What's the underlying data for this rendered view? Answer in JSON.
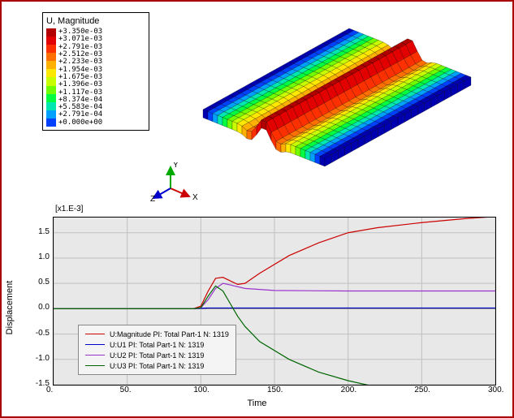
{
  "legend": {
    "title": "U, Magnitude",
    "colors": [
      "#b20000",
      "#e30000",
      "#ff3000",
      "#ff7000",
      "#ffb000",
      "#ffe800",
      "#c8ff00",
      "#70ff00",
      "#00ff40",
      "#00e8b0",
      "#00a0ff",
      "#0040ff",
      "#0000b0"
    ],
    "ticks": [
      "+3.350e-03",
      "+3.071e-03",
      "+2.791e-03",
      "+2.512e-03",
      "+2.233e-03",
      "+1.954e-03",
      "+1.675e-03",
      "+1.396e-03",
      "+1.117e-03",
      "+8.374e-04",
      "+5.583e-04",
      "+2.791e-04",
      "+0.000e+00"
    ]
  },
  "triad": {
    "x_label": "X",
    "y_label": "Y",
    "z_label": "Z",
    "x_color": "#cc0000",
    "y_color": "#00aa00",
    "z_color": "#0000cc"
  },
  "mesh": {
    "contour_colors_top": [
      "#0000b0",
      "#0040ff",
      "#00a0ff",
      "#00e8b0",
      "#00ff40",
      "#70ff00",
      "#c8ff00",
      "#ffe800",
      "#ffb000",
      "#ff7000",
      "#ff3000",
      "#e30000",
      "#b20000",
      "#e30000",
      "#ff3000",
      "#ff7000",
      "#ffb000",
      "#ffe800",
      "#c8ff00",
      "#70ff00",
      "#00ff40",
      "#00e8b0",
      "#00a0ff",
      "#0040ff",
      "#0000b0"
    ]
  },
  "chart": {
    "exponent_label": "[x1.E-3]",
    "ylabel": "Displacement",
    "xlabel": "Time",
    "xlim": [
      0,
      300
    ],
    "ylim": [
      -1.5,
      1.8
    ],
    "xticks": [
      0,
      50,
      100,
      150,
      200,
      250,
      300
    ],
    "xtick_labels": [
      "0.",
      "50.",
      "100.",
      "150.",
      "200.",
      "250.",
      "300."
    ],
    "yticks": [
      -1.5,
      -1.0,
      -0.5,
      0.0,
      0.5,
      1.0,
      1.5
    ],
    "ytick_labels": [
      "-1.5",
      "-1.0",
      "-0.5",
      "0.0",
      "0.5",
      "1.0",
      "1.5"
    ],
    "plot_bg": "#e8e8e8",
    "grid_color": "#c0c0c0",
    "series": [
      {
        "label": "U:Magnitude PI: Total Part-1 N: 1319",
        "color": "#cc0000",
        "points": [
          [
            0,
            0
          ],
          [
            95,
            0
          ],
          [
            100,
            0.05
          ],
          [
            105,
            0.35
          ],
          [
            110,
            0.6
          ],
          [
            115,
            0.62
          ],
          [
            120,
            0.55
          ],
          [
            125,
            0.48
          ],
          [
            130,
            0.5
          ],
          [
            140,
            0.7
          ],
          [
            160,
            1.05
          ],
          [
            180,
            1.3
          ],
          [
            200,
            1.5
          ],
          [
            220,
            1.6
          ],
          [
            250,
            1.7
          ],
          [
            280,
            1.78
          ],
          [
            300,
            1.82
          ]
        ]
      },
      {
        "label": "U:U1 PI: Total Part-1 N: 1319",
        "color": "#0000cc",
        "points": [
          [
            0,
            0
          ],
          [
            95,
            0
          ],
          [
            100,
            0.01
          ],
          [
            105,
            0.015
          ],
          [
            300,
            0.015
          ]
        ]
      },
      {
        "label": "U:U2 PI: Total Part-1 N: 1319",
        "color": "#9933cc",
        "points": [
          [
            0,
            0
          ],
          [
            95,
            0
          ],
          [
            100,
            0.02
          ],
          [
            105,
            0.18
          ],
          [
            110,
            0.4
          ],
          [
            115,
            0.5
          ],
          [
            120,
            0.47
          ],
          [
            130,
            0.4
          ],
          [
            150,
            0.36
          ],
          [
            200,
            0.35
          ],
          [
            300,
            0.35
          ]
        ]
      },
      {
        "label": "U:U3 PI: Total Part-1 N: 1319",
        "color": "#006600",
        "points": [
          [
            0,
            0
          ],
          [
            95,
            0
          ],
          [
            100,
            0.02
          ],
          [
            105,
            0.25
          ],
          [
            110,
            0.45
          ],
          [
            115,
            0.35
          ],
          [
            120,
            0.1
          ],
          [
            125,
            -0.15
          ],
          [
            130,
            -0.35
          ],
          [
            140,
            -0.65
          ],
          [
            160,
            -1.0
          ],
          [
            180,
            -1.25
          ],
          [
            200,
            -1.42
          ],
          [
            220,
            -1.55
          ],
          [
            250,
            -1.65
          ],
          [
            280,
            -1.72
          ],
          [
            300,
            -1.78
          ]
        ]
      }
    ]
  }
}
